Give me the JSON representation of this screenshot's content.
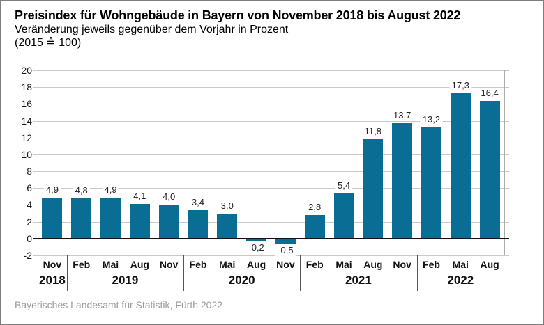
{
  "header": {
    "title": "Preisindex für Wohngebäude in Bayern von November 2018 bis August 2022",
    "subtitle": "Veränderung jeweils gegenüber dem Vorjahr in Prozent",
    "baseline_note": "(2015 ≙ 100)"
  },
  "footer": {
    "source": "Bayerisches Landesamt für Statistik, Fürth 2022"
  },
  "chart_data": {
    "type": "bar",
    "title": "Preisindex für Wohngebäude in Bayern von November 2018 bis August 2022",
    "subtitle": "Veränderung jeweils gegenüber dem Vorjahr in Prozent",
    "baseline_note": "(2015 ≙ 100)",
    "xlabel": "",
    "ylabel": "",
    "categories": [
      "Nov",
      "Feb",
      "Mai",
      "Aug",
      "Nov",
      "Feb",
      "Mai",
      "Aug",
      "Nov",
      "Feb",
      "Mai",
      "Aug",
      "Nov",
      "Feb",
      "Mai",
      "Aug"
    ],
    "values": [
      4.9,
      4.8,
      4.9,
      4.1,
      4.0,
      3.4,
      3.0,
      -0.2,
      -0.5,
      2.8,
      5.4,
      11.8,
      13.7,
      13.2,
      17.3,
      16.4
    ],
    "value_labels": [
      "4,9",
      "4,8",
      "4,9",
      "4,1",
      "4,0",
      "3,4",
      "3,0",
      "-0,2",
      "-0,5",
      "2,8",
      "5,4",
      "11,8",
      "13,7",
      "13,2",
      "17,3",
      "16,4"
    ],
    "groups": [
      {
        "year": "2018",
        "count": 1
      },
      {
        "year": "2019",
        "count": 4
      },
      {
        "year": "2020",
        "count": 4
      },
      {
        "year": "2021",
        "count": 4
      },
      {
        "year": "2022",
        "count": 3
      }
    ],
    "y_ticks": [
      20,
      18,
      16,
      14,
      12,
      10,
      8,
      6,
      4,
      2,
      0,
      -2
    ],
    "ylim": [
      -2,
      20
    ],
    "grid": true,
    "legend": "none",
    "bar_color": "#0a6d94",
    "grid_color": "#c9c9c9",
    "zero_line_color": "#111111",
    "source_text_color": "#9b9b9b"
  }
}
